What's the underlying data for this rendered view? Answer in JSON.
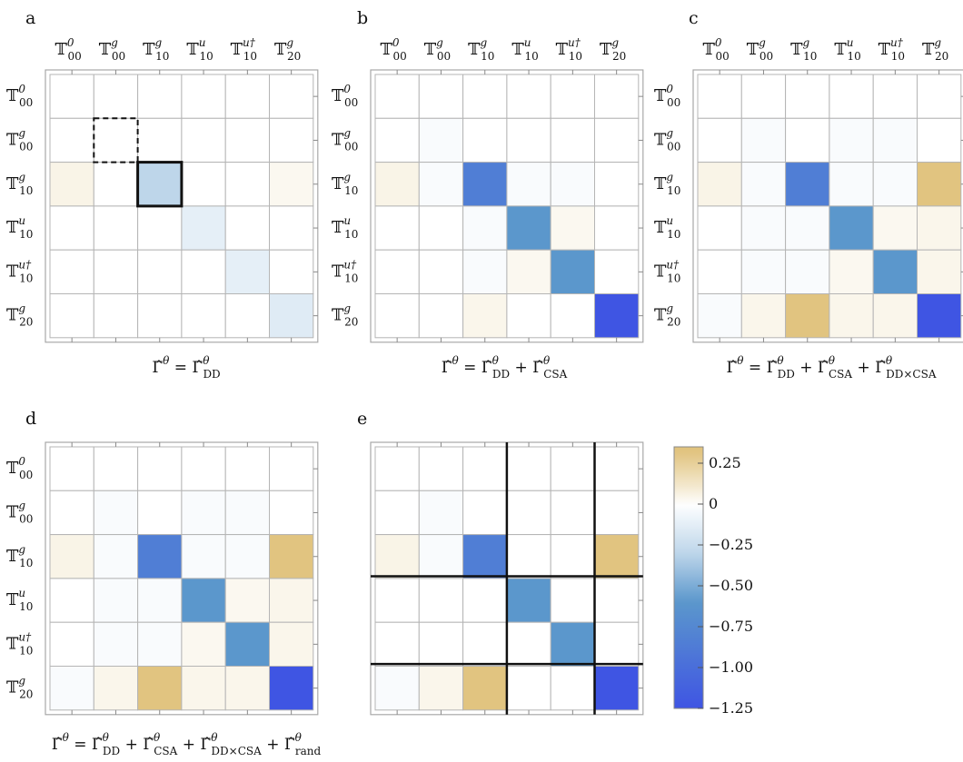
{
  "labels": {
    "T00_0": "𝕋",
    "sub": [
      "00",
      "00",
      "10",
      "10",
      "10",
      "20"
    ],
    "sup": [
      "0",
      "g",
      "g",
      "u",
      "u†",
      "g"
    ]
  },
  "chart_data": [
    {
      "type": "heatmap",
      "panel": "a",
      "row_labels": [
        "T^0_00",
        "T^g_00",
        "T^g_10",
        "T^u_10",
        "T^u†_10",
        "T^g_20"
      ],
      "col_labels": [
        "T^0_00",
        "T^g_00",
        "T^g_10",
        "T^u_10",
        "T^u†_10",
        "T^g_20"
      ],
      "formula": "Γ̂^θ = Γ̂^θ_DD",
      "values": [
        [
          0,
          0,
          0,
          0,
          0,
          0
        ],
        [
          0,
          0,
          0,
          0,
          0,
          0
        ],
        [
          0.05,
          0,
          -0.3,
          0,
          0,
          0.03
        ],
        [
          0,
          0,
          0,
          -0.12,
          0,
          0
        ],
        [
          0,
          0,
          0,
          0,
          -0.12,
          0
        ],
        [
          0,
          0,
          0,
          0,
          0,
          -0.15
        ]
      ],
      "highlight_dashed": [
        1,
        1
      ],
      "highlight_solid": [
        2,
        2
      ]
    },
    {
      "type": "heatmap",
      "panel": "b",
      "row_labels": [
        "T^0_00",
        "T^g_00",
        "T^g_10",
        "T^u_10",
        "T^u†_10",
        "T^g_20"
      ],
      "col_labels": [
        "T^0_00",
        "T^g_00",
        "T^g_10",
        "T^u_10",
        "T^u†_10",
        "T^g_20"
      ],
      "formula": "Γ̂^θ = Γ̂^θ_DD + Γ̂^θ_CSA",
      "values": [
        [
          0,
          0,
          0,
          0,
          0,
          0
        ],
        [
          0,
          -0.03,
          0,
          0,
          0,
          0
        ],
        [
          0.05,
          -0.03,
          -0.85,
          -0.03,
          -0.03,
          0
        ],
        [
          0,
          0,
          -0.03,
          -0.6,
          0.03,
          0
        ],
        [
          0,
          0,
          -0.03,
          0.03,
          -0.6,
          0
        ],
        [
          0,
          0,
          0.04,
          0,
          0,
          -1.25
        ]
      ]
    },
    {
      "type": "heatmap",
      "panel": "c",
      "row_labels": [
        "T^0_00",
        "T^g_00",
        "T^g_10",
        "T^u_10",
        "T^u†_10",
        "T^g_20"
      ],
      "col_labels": [
        "T^0_00",
        "T^g_00",
        "T^g_10",
        "T^u_10",
        "T^u†_10",
        "T^g_20"
      ],
      "formula": "Γ̂^θ = Γ̂^θ_DD + Γ̂^θ_CSA + Γ̂^θ_DD×CSA",
      "values": [
        [
          0,
          0,
          0,
          0,
          0,
          0
        ],
        [
          0,
          -0.03,
          0,
          -0.03,
          -0.03,
          0
        ],
        [
          0.05,
          -0.03,
          -0.85,
          -0.03,
          -0.03,
          0.32
        ],
        [
          0,
          -0.03,
          -0.03,
          -0.6,
          0.03,
          0.04
        ],
        [
          0,
          -0.03,
          -0.03,
          0.03,
          -0.6,
          0.04
        ],
        [
          -0.03,
          0.04,
          0.32,
          0.04,
          0.04,
          -1.25
        ]
      ]
    },
    {
      "type": "heatmap",
      "panel": "d",
      "row_labels": [
        "T^0_00",
        "T^g_00",
        "T^g_10",
        "T^u_10",
        "T^u†_10",
        "T^g_20"
      ],
      "col_labels": [],
      "formula": "Γ̂^θ = Γ̂^θ_DD + Γ̂^θ_CSA + Γ̂^θ_DD×CSA + Γ̂^θ_rand",
      "values": [
        [
          0,
          0,
          0,
          0,
          0,
          0
        ],
        [
          0,
          -0.03,
          0,
          -0.03,
          -0.03,
          0
        ],
        [
          0.05,
          -0.03,
          -0.85,
          -0.03,
          -0.03,
          0.32
        ],
        [
          0,
          -0.03,
          -0.03,
          -0.6,
          0.03,
          0.04
        ],
        [
          0,
          -0.03,
          -0.03,
          0.03,
          -0.6,
          0.04
        ],
        [
          -0.03,
          0.04,
          0.32,
          0.04,
          0.04,
          -1.25
        ]
      ]
    },
    {
      "type": "heatmap",
      "panel": "e",
      "row_labels": [],
      "col_labels": [],
      "formula": "",
      "values": [
        [
          0,
          0,
          0,
          0,
          0,
          0
        ],
        [
          0,
          -0.03,
          0,
          0,
          0,
          0
        ],
        [
          0.05,
          -0.03,
          -0.85,
          0,
          0,
          0.32
        ],
        [
          0,
          0,
          0,
          -0.6,
          0,
          0
        ],
        [
          0,
          0,
          0,
          0,
          -0.6,
          0
        ],
        [
          -0.03,
          0.04,
          0.32,
          0,
          0,
          -1.25
        ]
      ],
      "block_boundaries": [
        3,
        5
      ]
    }
  ],
  "colorbar": {
    "min": -1.25,
    "max": 0.35,
    "ticks": [
      0.25,
      0,
      -0.25,
      -0.5,
      -0.75,
      -1.0,
      -1.25
    ],
    "tick_labels": [
      "0.25",
      "0",
      "−0.25",
      "−0.50",
      "−0.75",
      "−1.00",
      "−1.25"
    ],
    "color_pos": "#e0c27c",
    "color_zero": "#ffffff",
    "color_neg_mid": "#5b97cc",
    "color_neg": "#3f55e3"
  },
  "grid_color": "#b5b5b5",
  "frame_color": "#a8a8a8"
}
